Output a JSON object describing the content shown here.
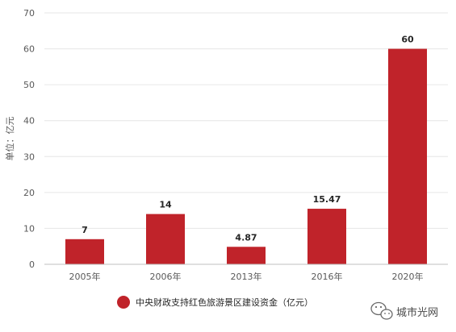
{
  "chart_data": {
    "type": "bar",
    "categories": [
      "2005年",
      "2006年",
      "2013年",
      "2016年",
      "2020年"
    ],
    "series": [
      {
        "name": "中央财政支持红色旅游景区建设资金（亿元）",
        "values": [
          7,
          14,
          4.87,
          15.47,
          60
        ]
      }
    ],
    "data_labels": [
      "7",
      "14",
      "4.87",
      "15.47",
      "60"
    ],
    "ylabel": "单位：亿元",
    "ylim": [
      0,
      70
    ],
    "yticks": [
      0,
      10,
      20,
      30,
      40,
      50,
      60,
      70
    ],
    "grid": true,
    "legend_position": "bottom",
    "bar_color": "#c0232a",
    "grid_color": "#e6e6e6"
  },
  "watermark": {
    "text": "城市光网"
  }
}
